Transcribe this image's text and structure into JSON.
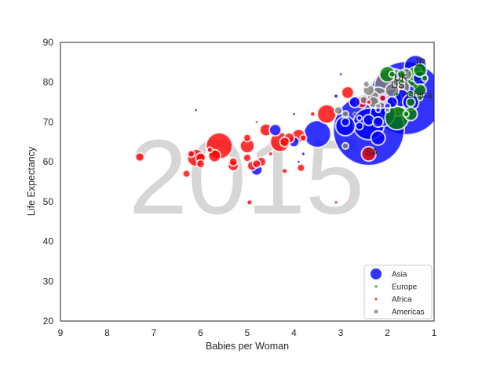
{
  "chart_data": {
    "type": "scatter",
    "subtype": "bubble",
    "watermark_year": "2015",
    "xlabel": "Babies per Woman",
    "ylabel": "Life Expectancy",
    "xlim": [
      9,
      1
    ],
    "ylim": [
      20,
      90
    ],
    "xticks": [
      "9",
      "8",
      "7",
      "6",
      "5",
      "4",
      "3",
      "2",
      "1"
    ],
    "yticks": [
      "20",
      "30",
      "40",
      "50",
      "60",
      "70",
      "80",
      "90"
    ],
    "grid": false,
    "legend_position": "bottom-right",
    "size_meaning": "population (millions, approximate)",
    "series": [
      {
        "name": "Asia",
        "color": "#0000ff",
        "points": [
          [
            1.6,
            76,
            1400
          ],
          [
            2.4,
            68,
            1310
          ],
          [
            2.4,
            69.5,
            258
          ],
          [
            3.5,
            67,
            190
          ],
          [
            2.1,
            72,
            160
          ],
          [
            1.4,
            84,
            127
          ],
          [
            2.9,
            69,
            100
          ],
          [
            1.9,
            76,
            92
          ],
          [
            1.7,
            76,
            79
          ],
          [
            1.5,
            75,
            68
          ],
          [
            2.2,
            66,
            53
          ],
          [
            1.3,
            81,
            50
          ],
          [
            4.8,
            58,
            33
          ],
          [
            4.4,
            68,
            36
          ],
          [
            4.0,
            65,
            27
          ],
          [
            1.9,
            75,
            30
          ],
          [
            2.2,
            70,
            28
          ],
          [
            2.7,
            75,
            31
          ],
          [
            2.4,
            70.5,
            31
          ],
          [
            2.1,
            76,
            21
          ],
          [
            2.9,
            70,
            18
          ],
          [
            2.6,
            69,
            15
          ],
          [
            3.0,
            82,
            1
          ],
          [
            3.1,
            76.5,
            3
          ],
          [
            4.0,
            72,
            1
          ],
          [
            3.8,
            62,
            2
          ],
          [
            2.7,
            72,
            5
          ],
          [
            2.0,
            74,
            9
          ],
          [
            2.2,
            73,
            6
          ],
          [
            2.6,
            71,
            7
          ],
          [
            6.1,
            73,
            0.3
          ],
          [
            3.9,
            60,
            1
          ]
        ]
      },
      {
        "name": "Europe",
        "color": "#008000",
        "points": [
          [
            1.8,
            71,
            144
          ],
          [
            1.4,
            81,
            81
          ],
          [
            2.0,
            82,
            64
          ],
          [
            1.4,
            82,
            60
          ],
          [
            1.3,
            83,
            46
          ],
          [
            1.5,
            72,
            45
          ],
          [
            1.3,
            78,
            38
          ],
          [
            1.5,
            75,
            20
          ],
          [
            1.7,
            82,
            17
          ],
          [
            1.7,
            80,
            11
          ],
          [
            1.5,
            77,
            10
          ],
          [
            1.9,
            82,
            10
          ],
          [
            1.2,
            81,
            10
          ],
          [
            1.6,
            72,
            9
          ],
          [
            1.4,
            79,
            4
          ],
          [
            1.8,
            77,
            3
          ],
          [
            1.3,
            76,
            7
          ]
        ]
      },
      {
        "name": "Africa",
        "color": "#ff0000",
        "points": [
          [
            5.6,
            64,
            180
          ],
          [
            4.3,
            65,
            99
          ],
          [
            3.3,
            72,
            92
          ],
          [
            6.1,
            61,
            77
          ],
          [
            5.0,
            64,
            53
          ],
          [
            2.4,
            62,
            55
          ],
          [
            3.9,
            66.5,
            47
          ],
          [
            5.7,
            61.5,
            39
          ],
          [
            2.85,
            77.4,
            39
          ],
          [
            4.6,
            68,
            39
          ],
          [
            2.55,
            75,
            34
          ],
          [
            5.3,
            59,
            28
          ],
          [
            4.1,
            66,
            27
          ],
          [
            4.2,
            65,
            24
          ],
          [
            6.0,
            61,
            25
          ],
          [
            4.7,
            60,
            23
          ],
          [
            7.3,
            61.2,
            20
          ],
          [
            4.9,
            59,
            23
          ],
          [
            5.3,
            60,
            18
          ],
          [
            6.0,
            59.5,
            17
          ],
          [
            4.8,
            59.5,
            17
          ],
          [
            5.0,
            61,
            16
          ],
          [
            5.0,
            66,
            15
          ],
          [
            6.3,
            57,
            14
          ],
          [
            3.85,
            58.5,
            15
          ],
          [
            3.8,
            66,
            11
          ],
          [
            2.1,
            76,
            11
          ],
          [
            4.95,
            49.8,
            5
          ],
          [
            3.1,
            49.8,
            2
          ],
          [
            4.5,
            62,
            3
          ],
          [
            2.4,
            75,
            6
          ],
          [
            4.2,
            57.7,
            5
          ],
          [
            4.8,
            70,
            1
          ],
          [
            3.6,
            72,
            4
          ],
          [
            6.2,
            62,
            12
          ],
          [
            5.8,
            63,
            8
          ]
        ]
      },
      {
        "name": "Americas",
        "color": "#808080",
        "points": [
          [
            1.9,
            79,
            320
          ],
          [
            1.8,
            75,
            206
          ],
          [
            2.2,
            76,
            125
          ],
          [
            1.9,
            78,
            48
          ],
          [
            2.3,
            76,
            43
          ],
          [
            1.6,
            82,
            36
          ],
          [
            2.4,
            78,
            31
          ],
          [
            2.3,
            75,
            31
          ],
          [
            3.05,
            72.9,
            16
          ],
          [
            2.9,
            64,
            11
          ],
          [
            2.9,
            72,
            11
          ],
          [
            1.8,
            80,
            18
          ],
          [
            2.45,
            79.5,
            10
          ],
          [
            2.5,
            75.5,
            16
          ],
          [
            2.0,
            73,
            6
          ],
          [
            2.2,
            74,
            7
          ],
          [
            2.7,
            72,
            3
          ],
          [
            1.7,
            79,
            11
          ]
        ]
      }
    ],
    "annotations": [
      {
        "text": "JP",
        "x": 1.43,
        "y": 84.2
      },
      {
        "text": "UK",
        "x": 1.86,
        "y": 80.3
      },
      {
        "text": "US",
        "x": 1.92,
        "y": 78.5
      },
      {
        "text": "China",
        "x": 1.59,
        "y": 76.0
      },
      {
        "text": "SA",
        "x": 2.48,
        "y": 61.6
      }
    ],
    "legend": [
      "Asia",
      "Europe",
      "Africa",
      "Americas"
    ]
  }
}
